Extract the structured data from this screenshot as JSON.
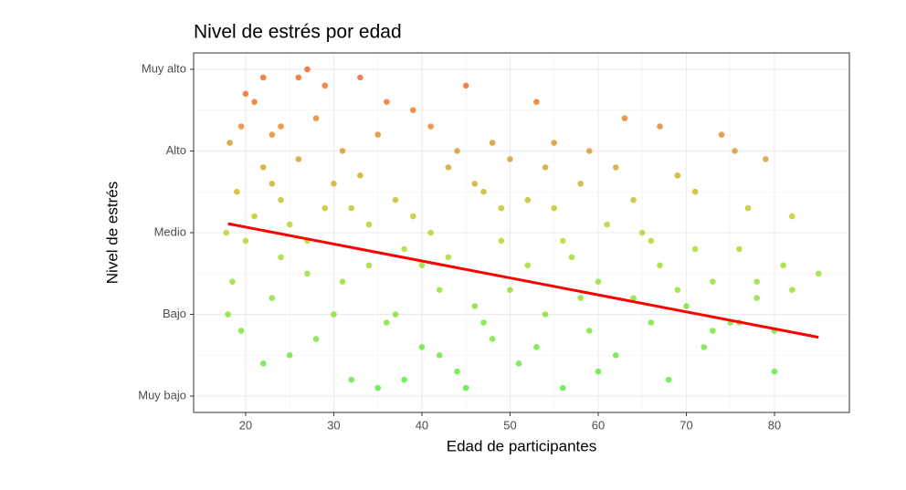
{
  "chart_data": {
    "type": "scatter",
    "title": "Nivel de estrés por edad",
    "x_label": "Edad de participantes",
    "y_label": "Nivel de estrés",
    "xlim": [
      14.1,
      88.5
    ],
    "xticks": [
      20,
      30,
      40,
      50,
      60,
      70,
      80
    ],
    "ylim": [
      0.8,
      5.2
    ],
    "yticks": [
      {
        "value": 1,
        "label": "Muy bajo"
      },
      {
        "value": 2,
        "label": "Bajo"
      },
      {
        "value": 3,
        "label": "Medio"
      },
      {
        "value": 4,
        "label": "Alto"
      },
      {
        "value": 5,
        "label": "Muy alto"
      }
    ],
    "grid": true,
    "color_stops": [
      "#22ee22",
      "#aad000",
      "#ff3300"
    ],
    "x": [
      18.2,
      19,
      20,
      21,
      22,
      23,
      24,
      25,
      26,
      27,
      18.5,
      19.5,
      21,
      22,
      23,
      24,
      25,
      26,
      27,
      28,
      29,
      30,
      31,
      32,
      33,
      34,
      35,
      36,
      37,
      38,
      39,
      40,
      41,
      42,
      43,
      44,
      45,
      46,
      47,
      48,
      49,
      50,
      51,
      52,
      53,
      54,
      55,
      56,
      57,
      58,
      59,
      60,
      61,
      62,
      63,
      64,
      65,
      66,
      67,
      68,
      69,
      70,
      71,
      72,
      73,
      74,
      75,
      76,
      77,
      78,
      79,
      80,
      81,
      82,
      85,
      75.5,
      80,
      17.8,
      18,
      20,
      22,
      23,
      28,
      29,
      30,
      31,
      33,
      34,
      36,
      37,
      38,
      39,
      41,
      42,
      43,
      44,
      46,
      47,
      48,
      50,
      52,
      53,
      55,
      56,
      58,
      59,
      60,
      62,
      64,
      66,
      67,
      69,
      71,
      73,
      76,
      78,
      82,
      35,
      45,
      54,
      19.5,
      24,
      27,
      32,
      40,
      49
    ],
    "values": [
      4.1,
      3.5,
      2.9,
      4.6,
      3.8,
      2.2,
      4.3,
      3.1,
      4.9,
      5.0,
      2.4,
      1.8,
      3.2,
      4.9,
      3.6,
      2.7,
      1.5,
      3.9,
      2.5,
      4.4,
      3.3,
      2.0,
      4.0,
      1.2,
      3.7,
      2.6,
      4.2,
      1.9,
      3.4,
      2.8,
      4.5,
      1.6,
      3.0,
      2.3,
      3.8,
      1.3,
      4.8,
      2.1,
      3.5,
      1.7,
      2.9,
      3.9,
      1.4,
      2.6,
      4.6,
      2.0,
      3.3,
      1.1,
      2.7,
      3.6,
      1.8,
      2.4,
      3.1,
      1.5,
      4.4,
      2.2,
      3.0,
      1.9,
      2.6,
      1.2,
      3.7,
      2.1,
      2.8,
      1.6,
      2.4,
      4.2,
      1.9,
      2.8,
      3.3,
      2.2,
      3.9,
      1.8,
      2.6,
      3.2,
      2.5,
      4.0,
      1.3,
      3.0,
      2.0,
      4.7,
      1.4,
      4.2,
      1.7,
      4.8,
      3.6,
      2.4,
      4.9,
      3.1,
      4.6,
      2.0,
      1.2,
      3.2,
      4.3,
      1.5,
      2.7,
      4.0,
      3.6,
      1.9,
      4.1,
      2.3,
      3.4,
      1.6,
      4.1,
      2.9,
      2.2,
      4.0,
      1.3,
      3.8,
      3.4,
      2.9,
      4.3,
      2.3,
      3.5,
      1.8,
      1.9,
      2.4,
      2.3,
      1.1,
      1.1,
      3.8,
      4.3,
      3.4,
      2.9,
      3.3,
      2.6,
      3.3
    ],
    "trend": {
      "x": [
        18,
        85
      ],
      "values": [
        3.11,
        1.72
      ],
      "color": "#ff0000"
    }
  }
}
